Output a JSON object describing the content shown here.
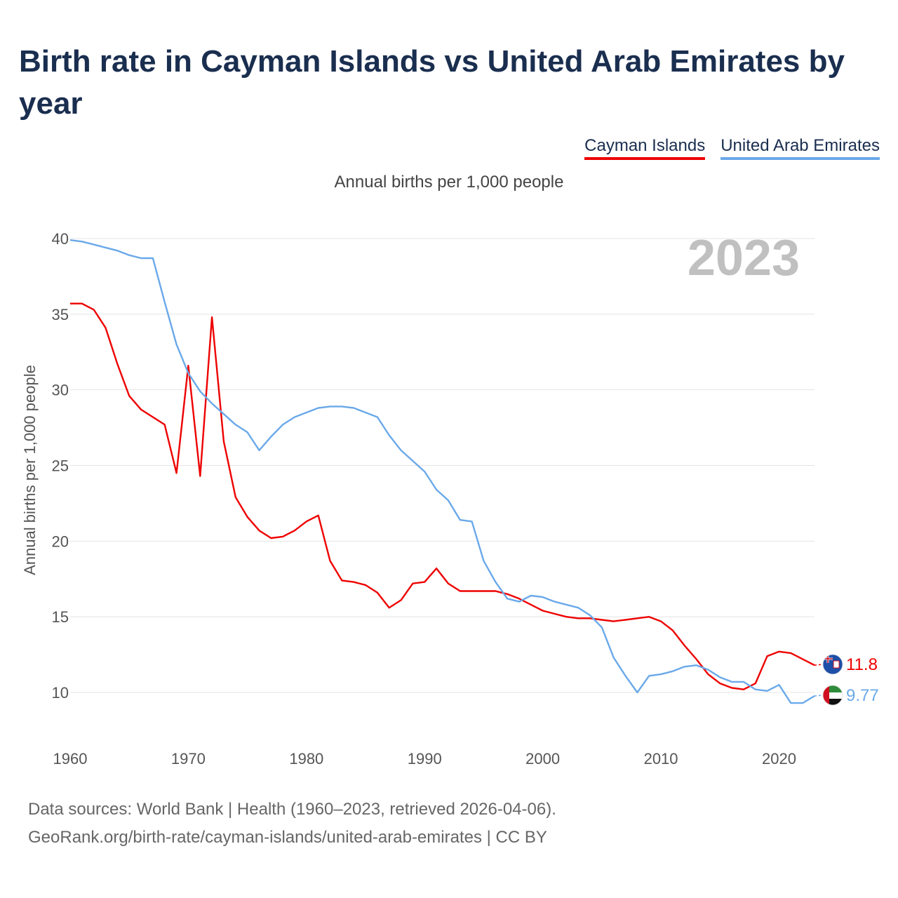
{
  "chart_data": {
    "type": "line",
    "title": "Birth rate in Cayman Islands vs United Arab Emirates by year",
    "subtitle": "Annual births per 1,000 people",
    "ylabel": "Annual births per 1,000 people",
    "xlabel": "",
    "year_watermark": "2023",
    "xlim": [
      1960,
      2023
    ],
    "ylim": [
      7.5,
      40
    ],
    "x_ticks": [
      1960,
      1970,
      1980,
      1990,
      2000,
      2010,
      2020
    ],
    "y_ticks": [
      10,
      15,
      20,
      25,
      30,
      35,
      40
    ],
    "x": [
      1960,
      1961,
      1962,
      1963,
      1964,
      1965,
      1966,
      1967,
      1968,
      1969,
      1970,
      1971,
      1972,
      1973,
      1974,
      1975,
      1976,
      1977,
      1978,
      1979,
      1980,
      1981,
      1982,
      1983,
      1984,
      1985,
      1986,
      1987,
      1988,
      1989,
      1990,
      1991,
      1992,
      1993,
      1994,
      1995,
      1996,
      1997,
      1998,
      1999,
      2000,
      2001,
      2002,
      2003,
      2004,
      2005,
      2006,
      2007,
      2008,
      2009,
      2010,
      2011,
      2012,
      2013,
      2014,
      2015,
      2016,
      2017,
      2018,
      2019,
      2020,
      2021,
      2022,
      2023
    ],
    "series": [
      {
        "name": "Cayman Islands",
        "color": "#ee0000",
        "end_label": "11.8",
        "flag": "cayman-islands-flag-icon",
        "values": [
          35.7,
          35.7,
          35.3,
          34.1,
          31.7,
          29.6,
          28.7,
          28.2,
          27.7,
          24.5,
          31.6,
          24.3,
          34.8,
          26.6,
          22.9,
          21.6,
          20.7,
          20.2,
          20.3,
          20.7,
          21.3,
          21.7,
          18.7,
          17.4,
          17.3,
          17.1,
          16.6,
          15.6,
          16.1,
          17.2,
          17.3,
          18.2,
          17.2,
          16.7,
          16.7,
          16.7,
          16.7,
          16.5,
          16.2,
          15.8,
          15.4,
          15.2,
          15.0,
          14.9,
          14.9,
          14.8,
          14.7,
          14.8,
          14.9,
          15.0,
          14.7,
          14.1,
          13.1,
          12.2,
          11.2,
          10.6,
          10.3,
          10.2,
          10.6,
          12.4,
          12.7,
          12.6,
          12.2,
          11.8
        ]
      },
      {
        "name": "United Arab Emirates",
        "color": "#6aa9e9",
        "end_label": "9.77",
        "flag": "uae-flag-icon",
        "values": [
          39.9,
          39.8,
          39.6,
          39.4,
          39.2,
          38.9,
          38.7,
          38.7,
          35.8,
          33.0,
          31.1,
          29.9,
          29.1,
          28.4,
          27.7,
          27.2,
          26.0,
          26.9,
          27.7,
          28.2,
          28.5,
          28.8,
          28.9,
          28.9,
          28.8,
          28.5,
          28.2,
          27.0,
          26.0,
          25.3,
          24.6,
          23.4,
          22.7,
          21.4,
          21.3,
          18.7,
          17.3,
          16.2,
          16.0,
          16.4,
          16.3,
          16.0,
          15.8,
          15.6,
          15.1,
          14.3,
          12.3,
          11.1,
          10.0,
          11.1,
          11.2,
          11.4,
          11.7,
          11.8,
          11.5,
          11.0,
          10.7,
          10.7,
          10.2,
          10.1,
          10.5,
          9.3,
          9.3,
          9.77
        ]
      }
    ]
  },
  "legend": {
    "series1": "Cayman Islands",
    "series2": "United Arab Emirates"
  },
  "source": {
    "line1": "Data sources: World Bank | Health (1960–2023, retrieved 2026-04-06).",
    "line2": "GeoRank.org/birth-rate/cayman-islands/united-arab-emirates | CC BY"
  }
}
